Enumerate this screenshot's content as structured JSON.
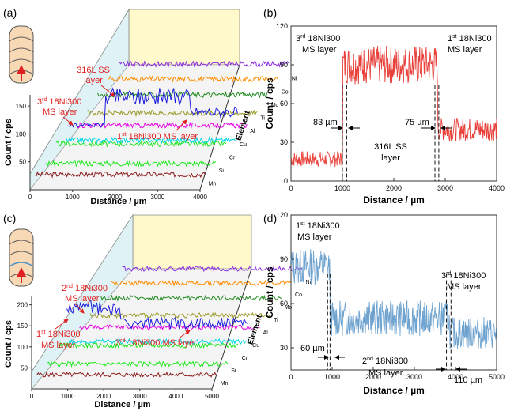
{
  "colors": {
    "ni": "#8a2be2",
    "co": "#ff8c00",
    "mo": "#228b22",
    "ti": "#9a9a2a",
    "al": "#e600e6",
    "cu": "#00d5e6",
    "cr": "#1ee61e",
    "si": "#1ee61e",
    "mn": "#8b1a1a",
    "fe": "#1a1adb",
    "red_line": "#e8403a",
    "blue_line": "#6fa3cf",
    "annotation": "#e02020",
    "top_panel": "#fff9cc",
    "side_panel": "#dff3f6"
  },
  "panels": [
    {
      "label": "(a)",
      "xlabel": "Distance / µm",
      "ylabel": "Count / cps",
      "zlabel": "Element",
      "x_ticks": [
        "0",
        "1000",
        "2000",
        "3000",
        "4000"
      ],
      "y_ticks": [
        "50",
        "100",
        "150"
      ],
      "elements": [
        "Mn",
        "Si",
        "Cr",
        "Cu",
        "Al",
        "Ti",
        "Mo",
        "Co",
        "Ni"
      ],
      "annotations": [
        {
          "text": "316L SS"
        },
        {
          "text": "layer"
        },
        {
          "text": "3rd 18Ni300"
        },
        {
          "text": "MS layer"
        },
        {
          "text": "1st 18Ni300 MS layer"
        }
      ]
    },
    {
      "label": "(c)",
      "xlabel": "Distance / µm",
      "ylabel": "Count / cps",
      "zlabel": "Element",
      "x_ticks": [
        "0",
        "1000",
        "2000",
        "3000",
        "4000",
        "5000"
      ],
      "y_ticks": [
        "50",
        "100",
        "150",
        "200"
      ],
      "elements": [
        "Mn",
        "Si",
        "Cr",
        "Cu",
        "Al",
        "Ti",
        "Mo",
        "Co",
        "Ni"
      ],
      "annotations": [
        {
          "text": "2nd 18Ni300"
        },
        {
          "text": "MS layer"
        },
        {
          "text": "1st 18Ni300"
        },
        {
          "text": "MS layer"
        },
        {
          "text": "3rd 18Ni300 MS layer"
        }
      ]
    }
  ],
  "chart_data": [
    {
      "panel": "(b)",
      "type": "line",
      "xlabel": "Distance / µm",
      "ylabel": "Count / cps",
      "xlim": [
        0,
        4000
      ],
      "ylim": [
        0,
        120
      ],
      "x_ticks": [
        0,
        1000,
        2000,
        3000,
        4000
      ],
      "y_ticks": [
        0,
        30,
        60,
        90,
        120
      ],
      "x_tick_labels": [
        "0",
        "1000",
        "2000",
        "3000",
        "4000"
      ],
      "y_tick_labels": [
        "0",
        "30",
        "60",
        "90",
        "120"
      ],
      "segments": [
        {
          "x_start": 0,
          "x_end": 1000,
          "mean": 17,
          "noise": 12
        },
        {
          "x_start": 1000,
          "x_end": 2850,
          "mean": 90,
          "noise": 30
        },
        {
          "x_start": 2850,
          "x_end": 4000,
          "mean": 40,
          "noise": 18
        }
      ],
      "annotations": [
        {
          "text": "3rd 18Ni300"
        },
        {
          "text": "MS layer"
        },
        {
          "text": "1st 18Ni300"
        },
        {
          "text": "MS layer"
        },
        {
          "text": "83 µm"
        },
        {
          "text": "75 µm"
        },
        {
          "text": "316L SS"
        },
        {
          "text": "layer"
        }
      ],
      "boundaries": [
        1000,
        1083,
        2800,
        2875
      ]
    },
    {
      "panel": "(d)",
      "type": "line",
      "xlabel": "Distance / µm",
      "ylabel": "Count / cps",
      "xlim": [
        0,
        5000
      ],
      "ylim": [
        15,
        120
      ],
      "x_ticks": [
        0,
        1000,
        2000,
        3000,
        4000,
        5000
      ],
      "y_ticks": [
        30,
        60,
        90,
        120
      ],
      "x_tick_labels": [
        "0",
        "1000",
        "2000",
        "3000",
        "4000",
        "5000"
      ],
      "y_tick_labels": [
        "30",
        "60",
        "90",
        "120"
      ],
      "segments": [
        {
          "x_start": 0,
          "x_end": 950,
          "mean": 85,
          "noise": 25
        },
        {
          "x_start": 950,
          "x_end": 3850,
          "mean": 50,
          "noise": 24
        },
        {
          "x_start": 3850,
          "x_end": 5000,
          "mean": 40,
          "noise": 22
        }
      ],
      "annotations": [
        {
          "text": "1st 18Ni300"
        },
        {
          "text": "MS layer"
        },
        {
          "text": "3rd 18Ni300"
        },
        {
          "text": "MS layer"
        },
        {
          "text": "60 µm"
        },
        {
          "text": "2nd 18Ni300"
        },
        {
          "text": "MS layer"
        },
        {
          "text": "110 µm"
        }
      ],
      "boundaries": [
        890,
        950,
        3780,
        3890
      ]
    }
  ]
}
